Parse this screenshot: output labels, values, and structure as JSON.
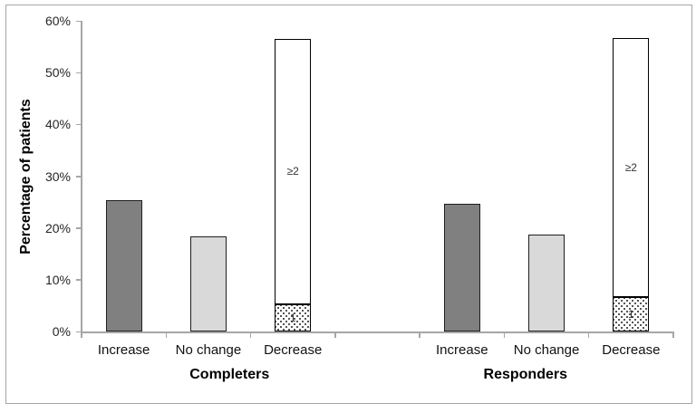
{
  "chart_data": {
    "type": "bar",
    "title": "",
    "xlabel": "",
    "ylabel": "Percentage of patients",
    "ylim": [
      0,
      60
    ],
    "ytick_step": 10,
    "ytick_labels": [
      "0%",
      "10%",
      "20%",
      "30%",
      "40%",
      "50%",
      "60%"
    ],
    "grid": false,
    "legend": "none",
    "categories": [
      "Increase",
      "No change",
      "Decrease"
    ],
    "groups": [
      {
        "label": "Completers",
        "bars": [
          {
            "category": "Increase",
            "style": "dark",
            "value": 25.4
          },
          {
            "category": "No change",
            "style": "light",
            "value": 18.4
          },
          {
            "category": "Decrease",
            "style": "stacked",
            "segments": [
              {
                "label": "1",
                "style": "dotted",
                "value": 5.3
              },
              {
                "label": "≥2",
                "style": "white",
                "value": 51.2
              }
            ]
          }
        ]
      },
      {
        "label": "Responders",
        "bars": [
          {
            "category": "Increase",
            "style": "dark",
            "value": 24.7
          },
          {
            "category": "No change",
            "style": "light",
            "value": 18.8
          },
          {
            "category": "Decrease",
            "style": "stacked",
            "segments": [
              {
                "label": "1",
                "style": "dotted",
                "value": 6.7
              },
              {
                "label": "≥2",
                "style": "white",
                "value": 49.9
              }
            ]
          }
        ]
      }
    ],
    "colors": {
      "dark_bar": "#808080",
      "light_bar": "#d9d9d9",
      "white_bar": "#ffffff",
      "bar_border": "#000000",
      "axis": "#a6a6a6",
      "text": "#262626"
    }
  }
}
